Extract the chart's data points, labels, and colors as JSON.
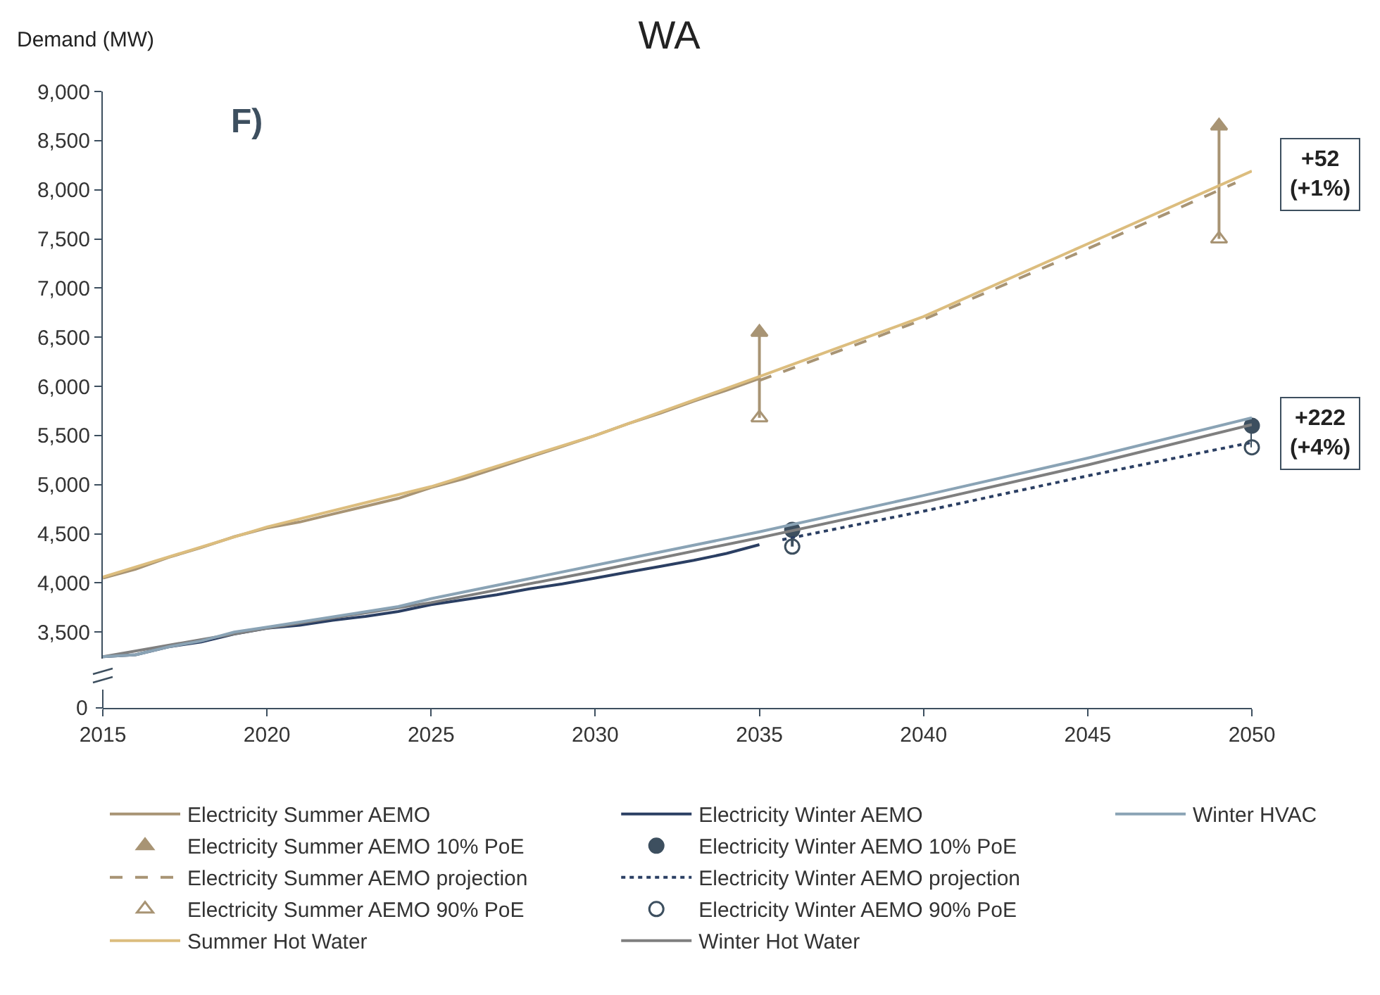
{
  "chart_data": {
    "type": "line",
    "title": "WA",
    "ylabel": "Demand (MW)",
    "x": [
      2015,
      2016,
      2017,
      2018,
      2019,
      2020,
      2021,
      2022,
      2023,
      2024,
      2025,
      2026,
      2027,
      2028,
      2029,
      2030,
      2031,
      2032,
      2033,
      2034,
      2035
    ],
    "series": [
      {
        "name": "Electricity Summer AEMO",
        "color": "#a89474",
        "values": [
          4050,
          4140,
          4260,
          4360,
          4470,
          4560,
          4620,
          4700,
          4780,
          4860,
          4970,
          5060,
          5170,
          5280,
          5390,
          5500,
          5620,
          5730,
          5850,
          5960,
          6080
        ]
      },
      {
        "name": "Electricity Summer AEMO 10% PoE",
        "type": "scatter",
        "marker": "triangle",
        "color": "#a89474",
        "x": [
          2035,
          2049
        ],
        "values": [
          6550,
          8650
        ],
        "errors": [
          [
            5680,
            6550
          ],
          [
            7500,
            8650
          ]
        ]
      },
      {
        "name": "Electricity Summer AEMO projection",
        "color": "#a89474",
        "line_style": "dashed",
        "x": [
          2035,
          2040,
          2045,
          2049.5
        ],
        "values": [
          6060,
          6680,
          7400,
          8070
        ]
      },
      {
        "name": "Electricity Summer AEMO 90% PoE",
        "type": "scatter",
        "marker": "triangle-open",
        "color": "#a89474",
        "x": [
          2035,
          2049
        ],
        "values": [
          5680,
          7500
        ]
      },
      {
        "name": "Summer Hot Water",
        "color": "#dcbd7e",
        "x": [
          2015,
          2020,
          2025,
          2030,
          2035,
          2040,
          2045,
          2050
        ],
        "values": [
          4060,
          4570,
          4980,
          5500,
          6100,
          6710,
          7450,
          8190
        ]
      },
      {
        "name": "Electricity Winter AEMO",
        "color": "#2b3f63",
        "values": [
          3250,
          3270,
          3350,
          3400,
          3480,
          3540,
          3570,
          3620,
          3660,
          3710,
          3780,
          3830,
          3880,
          3940,
          3990,
          4050,
          4110,
          4170,
          4230,
          4300,
          4390
        ]
      },
      {
        "name": "Electricity Winter AEMO 10% PoE",
        "type": "scatter",
        "marker": "circle",
        "color": "#3d4f5f",
        "x": [
          2036,
          2050
        ],
        "values": [
          4540,
          5600
        ],
        "errors": [
          [
            4370,
            4540
          ],
          [
            5380,
            5600
          ]
        ]
      },
      {
        "name": "Electricity Winter AEMO projection",
        "color": "#2b3f63",
        "line_style": "dotted",
        "x": [
          2035.7,
          2040,
          2045,
          2050
        ],
        "values": [
          4440,
          4730,
          5090,
          5430
        ]
      },
      {
        "name": "Electricity Winter AEMO 90% PoE",
        "type": "scatter",
        "marker": "circle-open",
        "color": "#3d4f5f",
        "x": [
          2036,
          2050
        ],
        "values": [
          4370,
          5380
        ]
      },
      {
        "name": "Winter Hot Water",
        "color": "#7f7f7f",
        "x": [
          2015,
          2020,
          2025,
          2030,
          2035,
          2040,
          2045,
          2050
        ],
        "values": [
          3250,
          3540,
          3800,
          4120,
          4460,
          4820,
          5200,
          5610
        ]
      },
      {
        "name": "Winter HVAC",
        "color": "#8aa3b5",
        "x": [
          2015,
          2016,
          2017,
          2018,
          2019,
          2020,
          2024,
          2025,
          2030,
          2035,
          2040,
          2045,
          2050
        ],
        "values": [
          3250,
          3270,
          3350,
          3410,
          3500,
          3550,
          3760,
          3840,
          4180,
          4520,
          4890,
          5270,
          5680
        ]
      }
    ],
    "xlim": [
      2015,
      2050
    ],
    "xticks": [
      2015,
      2020,
      2025,
      2030,
      2035,
      2040,
      2045,
      2050
    ],
    "ylim": [
      3230,
      9000
    ],
    "yticks": [
      {
        "value": 3500,
        "label": "3,500"
      },
      {
        "value": 4000,
        "label": "4,000"
      },
      {
        "value": 4500,
        "label": "4,500"
      },
      {
        "value": 5000,
        "label": "5,000"
      },
      {
        "value": 5500,
        "label": "5,500"
      },
      {
        "value": 6000,
        "label": "6,000"
      },
      {
        "value": 6500,
        "label": "6,500"
      },
      {
        "value": 7000,
        "label": "7,000"
      },
      {
        "value": 7500,
        "label": "7,500"
      },
      {
        "value": 8000,
        "label": "8,000"
      },
      {
        "value": 8500,
        "label": "8,500"
      },
      {
        "value": 9000,
        "label": "9,000"
      }
    ],
    "annotations": [
      "F)",
      "0",
      {
        "text": "+52\n(+1%)",
        "x": 2050,
        "y": 8150
      },
      {
        "text": "+222\n(+4%)",
        "x": 2050,
        "y": 5520
      }
    ],
    "grid": false,
    "legend": "bottom",
    "marker": "none",
    "line_style": "solid"
  }
}
